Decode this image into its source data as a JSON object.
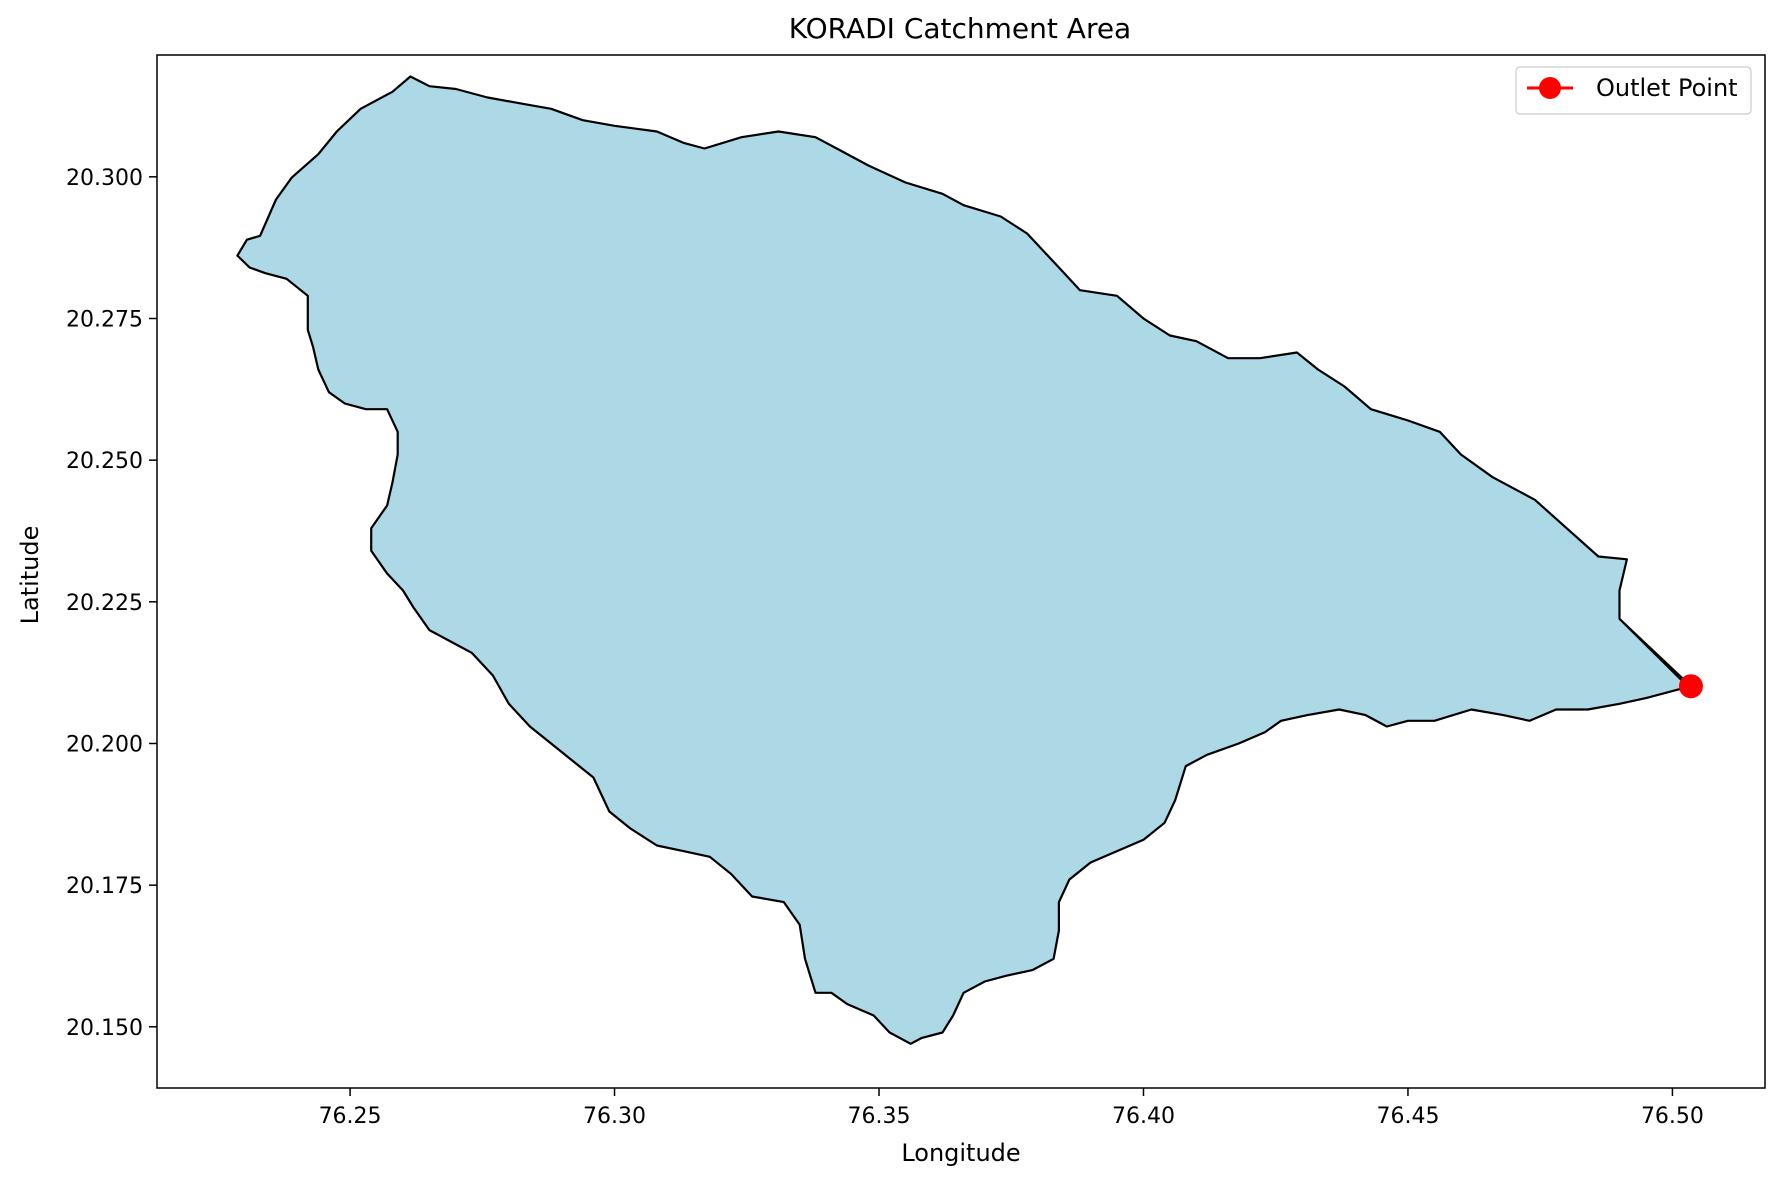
{
  "chart_data": {
    "type": "map",
    "title": "KORADI Catchment Area",
    "xlabel": "Longitude",
    "ylabel": "Latitude",
    "xlim": [
      76.2135,
      76.5175
    ],
    "ylim": [
      20.1392,
      20.3215
    ],
    "x_ticks": [
      76.25,
      76.3,
      76.35,
      76.4,
      76.45,
      76.5
    ],
    "x_tick_labels": [
      "76.25",
      "76.30",
      "76.35",
      "76.40",
      "76.45",
      "76.50"
    ],
    "y_ticks": [
      20.15,
      20.175,
      20.2,
      20.225,
      20.25,
      20.275,
      20.3
    ],
    "y_tick_labels": [
      "20.150",
      "20.175",
      "20.200",
      "20.225",
      "20.250",
      "20.275",
      "20.300"
    ],
    "grid": false,
    "legend_position": "top-right",
    "legend": [
      {
        "label": "Outlet Point",
        "color": "#ff0000",
        "marker": "circle"
      }
    ],
    "catchment": {
      "fill": "#add8e6",
      "edge": "#000000",
      "boundary": [
        [
          76.2287,
          20.2861
        ],
        [
          76.2305,
          20.2889
        ],
        [
          76.233,
          20.2896
        ],
        [
          76.236,
          20.296
        ],
        [
          76.239,
          20.2999
        ],
        [
          76.244,
          20.304
        ],
        [
          76.2475,
          20.308
        ],
        [
          76.252,
          20.312
        ],
        [
          76.258,
          20.315
        ],
        [
          76.2614,
          20.3177
        ],
        [
          76.265,
          20.316
        ],
        [
          76.27,
          20.3155
        ],
        [
          76.276,
          20.314
        ],
        [
          76.282,
          20.313
        ],
        [
          76.288,
          20.312
        ],
        [
          76.294,
          20.31
        ],
        [
          76.3,
          20.309
        ],
        [
          76.308,
          20.308
        ],
        [
          76.313,
          20.306
        ],
        [
          76.317,
          20.305
        ],
        [
          76.324,
          20.307
        ],
        [
          76.331,
          20.308
        ],
        [
          76.338,
          20.307
        ],
        [
          76.342,
          20.305
        ],
        [
          76.348,
          20.302
        ],
        [
          76.355,
          20.299
        ],
        [
          76.362,
          20.297
        ],
        [
          76.366,
          20.295
        ],
        [
          76.373,
          20.293
        ],
        [
          76.378,
          20.29
        ],
        [
          76.384,
          20.284
        ],
        [
          76.388,
          20.28
        ],
        [
          76.395,
          20.279
        ],
        [
          76.4,
          20.275
        ],
        [
          76.405,
          20.272
        ],
        [
          76.41,
          20.271
        ],
        [
          76.416,
          20.268
        ],
        [
          76.422,
          20.268
        ],
        [
          76.429,
          20.269
        ],
        [
          76.433,
          20.266
        ],
        [
          76.438,
          20.263
        ],
        [
          76.443,
          20.259
        ],
        [
          76.45,
          20.257
        ],
        [
          76.456,
          20.255
        ],
        [
          76.46,
          20.251
        ],
        [
          76.466,
          20.247
        ],
        [
          76.474,
          20.243
        ],
        [
          76.48,
          20.238
        ],
        [
          76.486,
          20.233
        ],
        [
          76.4914,
          20.2325
        ],
        [
          76.49,
          20.227
        ],
        [
          76.49,
          20.222
        ],
        [
          76.503,
          20.21
        ],
        [
          76.495,
          20.208
        ],
        [
          76.49,
          20.207
        ],
        [
          76.484,
          20.206
        ],
        [
          76.478,
          20.206
        ],
        [
          76.473,
          20.204
        ],
        [
          76.468,
          20.205
        ],
        [
          76.462,
          20.206
        ],
        [
          76.455,
          20.204
        ],
        [
          76.45,
          20.204
        ],
        [
          76.446,
          20.203
        ],
        [
          76.442,
          20.205
        ],
        [
          76.437,
          20.206
        ],
        [
          76.431,
          20.205
        ],
        [
          76.426,
          20.204
        ],
        [
          76.423,
          20.202
        ],
        [
          76.418,
          20.2
        ],
        [
          76.412,
          20.198
        ],
        [
          76.408,
          20.196
        ],
        [
          76.406,
          20.19
        ],
        [
          76.404,
          20.186
        ],
        [
          76.4,
          20.183
        ],
        [
          76.395,
          20.181
        ],
        [
          76.39,
          20.179
        ],
        [
          76.386,
          20.176
        ],
        [
          76.384,
          20.172
        ],
        [
          76.384,
          20.167
        ],
        [
          76.383,
          20.162
        ],
        [
          76.379,
          20.16
        ],
        [
          76.374,
          20.159
        ],
        [
          76.37,
          20.158
        ],
        [
          76.366,
          20.156
        ],
        [
          76.364,
          20.152
        ],
        [
          76.362,
          20.149
        ],
        [
          76.358,
          20.148
        ],
        [
          76.356,
          20.147
        ],
        [
          76.352,
          20.149
        ],
        [
          76.349,
          20.152
        ],
        [
          76.344,
          20.154
        ],
        [
          76.341,
          20.156
        ],
        [
          76.338,
          20.156
        ],
        [
          76.336,
          20.162
        ],
        [
          76.335,
          20.168
        ],
        [
          76.332,
          20.172
        ],
        [
          76.326,
          20.173
        ],
        [
          76.322,
          20.177
        ],
        [
          76.318,
          20.18
        ],
        [
          76.313,
          20.181
        ],
        [
          76.308,
          20.182
        ],
        [
          76.303,
          20.185
        ],
        [
          76.299,
          20.188
        ],
        [
          76.296,
          20.194
        ],
        [
          76.292,
          20.197
        ],
        [
          76.288,
          20.2
        ],
        [
          76.284,
          20.203
        ],
        [
          76.28,
          20.207
        ],
        [
          76.277,
          20.212
        ],
        [
          76.273,
          20.216
        ],
        [
          76.269,
          20.218
        ],
        [
          76.265,
          20.22
        ],
        [
          76.262,
          20.224
        ],
        [
          76.26,
          20.227
        ],
        [
          76.257,
          20.23
        ],
        [
          76.254,
          20.234
        ],
        [
          76.254,
          20.238
        ],
        [
          76.257,
          20.242
        ],
        [
          76.258,
          20.246
        ],
        [
          76.259,
          20.251
        ],
        [
          76.259,
          20.255
        ],
        [
          76.257,
          20.259
        ],
        [
          76.253,
          20.259
        ],
        [
          76.249,
          20.26
        ],
        [
          76.246,
          20.262
        ],
        [
          76.244,
          20.266
        ],
        [
          76.243,
          20.27
        ],
        [
          76.242,
          20.273
        ],
        [
          76.242,
          20.279
        ],
        [
          76.238,
          20.282
        ],
        [
          76.234,
          20.283
        ],
        [
          76.231,
          20.284
        ],
        [
          76.2287,
          20.2861
        ]
      ]
    },
    "outlet_point": {
      "lon": 76.5035,
      "lat": 20.2101,
      "label": "Outlet Point",
      "color": "#ff0000"
    }
  }
}
